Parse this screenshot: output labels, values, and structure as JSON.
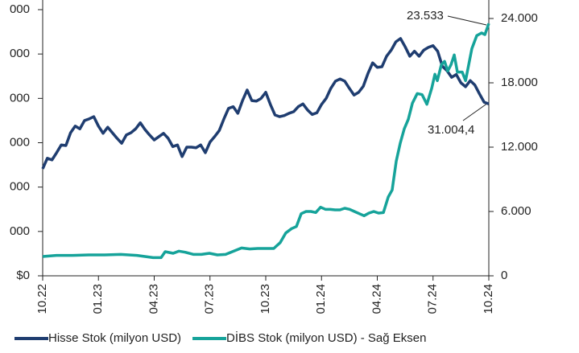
{
  "chart_data": {
    "type": "line",
    "xlim": [
      0,
      24
    ],
    "xticks": [
      {
        "value": 0,
        "label": "10.22"
      },
      {
        "value": 3,
        "label": "01.23"
      },
      {
        "value": 6,
        "label": "04.23"
      },
      {
        "value": 9,
        "label": "07.23"
      },
      {
        "value": 12,
        "label": "10.23"
      },
      {
        "value": 15,
        "label": "01.24"
      },
      {
        "value": 18,
        "label": "04.24"
      },
      {
        "value": 21,
        "label": "07.24"
      },
      {
        "value": 24,
        "label": "10.24"
      }
    ],
    "ylim": [
      0,
      48000
    ],
    "yticks": [
      {
        "value": 0,
        "label": "$0"
      },
      {
        "value": 8000,
        "label": "000"
      },
      {
        "value": 16000,
        "label": "000"
      },
      {
        "value": 24000,
        "label": "000"
      },
      {
        "value": 32000,
        "label": "000"
      },
      {
        "value": 40000,
        "label": "000"
      },
      {
        "value": 48000,
        "label": "000"
      }
    ],
    "y2lim": [
      0,
      24825
    ],
    "y2ticks": [
      0,
      {
        "value": 6000,
        "label": "6.000"
      },
      {
        "value": 12000,
        "label": "12.000"
      },
      {
        "value": 18000,
        "label": "18.000"
      },
      {
        "value": 24000,
        "label": "24.000"
      }
    ],
    "legend": "bottom",
    "series": [
      {
        "name": "Hisse Stok (milyon USD)",
        "color": "#1f3d70",
        "x": [
          0,
          0.25,
          0.5,
          0.75,
          1,
          1.25,
          1.5,
          1.75,
          2,
          2.25,
          2.5,
          2.75,
          3,
          3.25,
          3.5,
          3.75,
          4,
          4.25,
          4.5,
          4.75,
          5,
          5.25,
          5.5,
          5.75,
          6,
          6.25,
          6.5,
          6.75,
          7,
          7.25,
          7.5,
          7.75,
          8,
          8.25,
          8.5,
          8.75,
          9,
          9.25,
          9.5,
          9.75,
          10,
          10.25,
          10.5,
          10.75,
          11,
          11.25,
          11.5,
          11.75,
          12,
          12.25,
          12.5,
          12.75,
          13,
          13.25,
          13.5,
          13.75,
          14,
          14.25,
          14.5,
          14.75,
          15,
          15.25,
          15.5,
          15.75,
          16,
          16.25,
          16.5,
          16.75,
          17,
          17.25,
          17.5,
          17.75,
          18,
          18.25,
          18.5,
          18.75,
          19,
          19.25,
          19.5,
          19.75,
          20,
          20.25,
          20.5,
          20.75,
          21,
          21.25,
          21.5,
          21.75,
          22,
          22.25,
          22.5,
          22.75,
          23,
          23.25,
          23.5,
          23.75,
          24
        ],
        "values": [
          19300,
          21200,
          20900,
          22200,
          23600,
          23500,
          25800,
          27000,
          26500,
          28000,
          28300,
          28700,
          27000,
          25700,
          26800,
          25800,
          24800,
          23900,
          25400,
          25800,
          26500,
          27600,
          26400,
          25400,
          24500,
          25100,
          25700,
          24800,
          23300,
          23600,
          21500,
          23200,
          23200,
          23100,
          23600,
          22200,
          24100,
          25100,
          26200,
          28300,
          30200,
          30500,
          29300,
          31600,
          33500,
          31600,
          31500,
          32000,
          33100,
          30900,
          29000,
          28700,
          28900,
          29300,
          29600,
          30500,
          31000,
          29900,
          29100,
          29400,
          30900,
          32000,
          33800,
          35100,
          35500,
          35100,
          33800,
          32600,
          33100,
          34200,
          36500,
          38400,
          37600,
          37700,
          39600,
          40700,
          42200,
          42800,
          41300,
          39600,
          40500,
          39600,
          40700,
          41200,
          41500,
          40500,
          37800,
          37000,
          35800,
          36300,
          34800,
          34100,
          35200,
          34400,
          32800,
          31300,
          31004.4
        ]
      },
      {
        "name": "DİBS Stok (milyon USD) - Sağ Eksen",
        "color": "#16a39a",
        "axis": "y2",
        "x": [
          0,
          0.74,
          1.6,
          2.47,
          3.34,
          4.2,
          5.07,
          5.94,
          6.37,
          6.59,
          7.02,
          7.32,
          7.67,
          8.1,
          8.54,
          8.97,
          9.4,
          9.84,
          10.27,
          10.7,
          11.14,
          11.57,
          12,
          12.43,
          12.78,
          13.08,
          13.39,
          13.65,
          13.91,
          14.17,
          14.43,
          14.69,
          14.95,
          15.21,
          15.47,
          15.73,
          15.99,
          16.25,
          16.51,
          16.77,
          17.03,
          17.29,
          17.55,
          17.81,
          18.07,
          18.33,
          18.59,
          18.8,
          19.02,
          19.24,
          19.45,
          19.67,
          19.89,
          20.15,
          20.41,
          20.67,
          20.93,
          21.1,
          21.23,
          21.45,
          21.62,
          21.79,
          21.97,
          22.14,
          22.31,
          22.57,
          22.75,
          22.92,
          23.09,
          23.35,
          23.61,
          23.79,
          24
        ],
        "values": [
          1800,
          1900,
          1900,
          1950,
          1950,
          2000,
          1900,
          1700,
          1700,
          2250,
          2100,
          2300,
          2200,
          2000,
          2000,
          2100,
          1950,
          2000,
          2300,
          2600,
          2500,
          2550,
          2550,
          2550,
          3100,
          4000,
          4400,
          4600,
          5800,
          6000,
          6000,
          5900,
          6400,
          6200,
          6200,
          6150,
          6150,
          6300,
          6200,
          6000,
          5800,
          5600,
          5850,
          6000,
          5850,
          5900,
          7350,
          8000,
          10700,
          12400,
          13700,
          14600,
          16100,
          17000,
          16900,
          16000,
          17500,
          18800,
          18200,
          19700,
          20000,
          19100,
          19700,
          20600,
          19000,
          19000,
          18200,
          19700,
          21200,
          22400,
          22650,
          22500,
          23533
        ]
      }
    ],
    "annotations": [
      "23.533",
      "31.004,4"
    ]
  }
}
